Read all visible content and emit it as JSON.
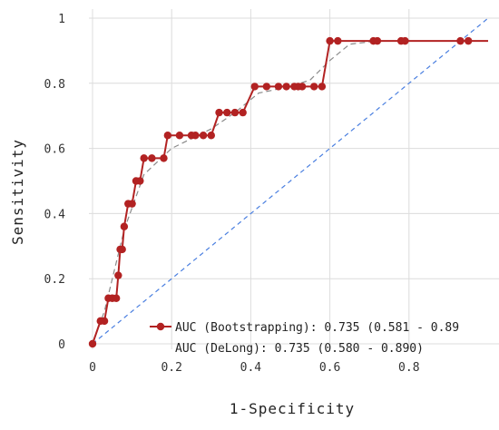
{
  "chart_data": {
    "type": "line",
    "title": "",
    "xlabel": "1-Specificity",
    "ylabel": "Sensitivity",
    "xlim": [
      0,
      1
    ],
    "ylim": [
      0,
      1
    ],
    "x_ticks": [
      "0",
      "0.2",
      "0.4",
      "0.6",
      "0.8"
    ],
    "x_tick_values": [
      0,
      0.2,
      0.4,
      0.6,
      0.8
    ],
    "y_ticks": [
      "0",
      "0.2",
      "0.4",
      "0.6",
      "0.8",
      "1"
    ],
    "y_tick_values": [
      0,
      0.2,
      0.4,
      0.6,
      0.8,
      1
    ],
    "grid": true,
    "legend_position": "bottom-right",
    "colors": {
      "roc": "#b22222",
      "reference": "#4a7fe0",
      "smooth": "#8a8a8a",
      "grid": "#dcdcdc"
    },
    "series": [
      {
        "name": "AUC (Bootstrapping): 0.735 (0.581 - 0.89",
        "style": "line-markers",
        "x": [
          0.0,
          0.02,
          0.03,
          0.04,
          0.05,
          0.06,
          0.065,
          0.07,
          0.075,
          0.08,
          0.09,
          0.1,
          0.11,
          0.12,
          0.13,
          0.15,
          0.18,
          0.19,
          0.22,
          0.25,
          0.26,
          0.28,
          0.3,
          0.32,
          0.34,
          0.36,
          0.38,
          0.41,
          0.44,
          0.47,
          0.49,
          0.51,
          0.52,
          0.53,
          0.56,
          0.58,
          0.6,
          0.62,
          0.71,
          0.72,
          0.78,
          0.79,
          0.93,
          0.95,
          1.0
        ],
        "y": [
          0.0,
          0.07,
          0.07,
          0.14,
          0.14,
          0.14,
          0.21,
          0.29,
          0.29,
          0.36,
          0.43,
          0.43,
          0.5,
          0.5,
          0.57,
          0.57,
          0.57,
          0.64,
          0.64,
          0.64,
          0.64,
          0.64,
          0.64,
          0.71,
          0.71,
          0.71,
          0.71,
          0.79,
          0.79,
          0.79,
          0.79,
          0.79,
          0.79,
          0.79,
          0.79,
          0.79,
          0.93,
          0.93,
          0.93,
          0.93,
          0.93,
          0.93,
          0.93,
          0.93,
          0.93
        ]
      },
      {
        "name": "AUC (DeLong): 0.735 (0.580 - 0.890)",
        "style": "none"
      },
      {
        "style": "dashed",
        "x": [
          0.0,
          0.03,
          0.08,
          0.13,
          0.2,
          0.3,
          0.36,
          0.42,
          0.5,
          0.55,
          0.6,
          0.65,
          0.72,
          0.8,
          0.9,
          1.0
        ],
        "y": [
          0.0,
          0.1,
          0.35,
          0.52,
          0.6,
          0.66,
          0.71,
          0.77,
          0.79,
          0.81,
          0.87,
          0.92,
          0.93,
          0.93,
          0.93,
          0.93
        ]
      },
      {
        "style": "reference-dashed",
        "x": [
          0.0,
          1.0
        ],
        "y": [
          0.0,
          1.0
        ]
      }
    ]
  }
}
